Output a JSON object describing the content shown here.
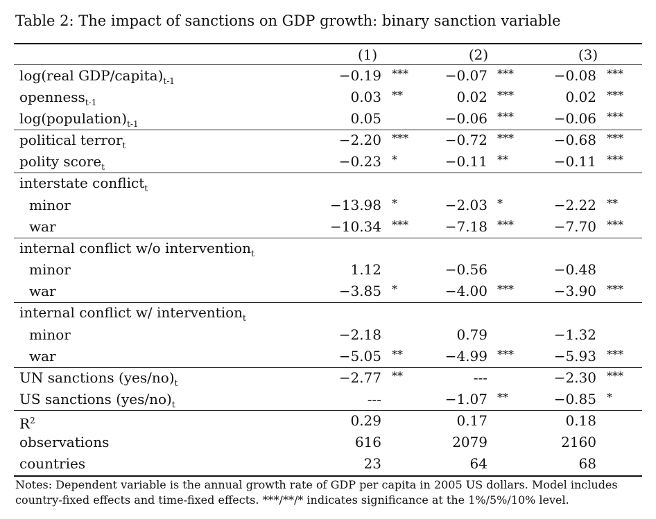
{
  "caption": "Table 2: The impact of sanctions on GDP growth: binary sanction variable",
  "columns": [
    "(1)",
    "(2)",
    "(3)"
  ],
  "rows": [
    {
      "label": "log(real GDP/capita)",
      "sub": "t-1",
      "sup": "",
      "indent": false,
      "cells": [
        [
          "−0.19",
          "***"
        ],
        [
          "−0.07",
          "***"
        ],
        [
          "−0.08",
          "***"
        ]
      ]
    },
    {
      "label": "openness",
      "sub": "t-1",
      "sup": "",
      "indent": false,
      "cells": [
        [
          "0.03",
          "**"
        ],
        [
          "0.02",
          "***"
        ],
        [
          "0.02",
          "***"
        ]
      ]
    },
    {
      "label": "log(population)",
      "sub": "t-1",
      "sup": "",
      "indent": false,
      "cells": [
        [
          "0.05",
          ""
        ],
        [
          "−0.06",
          "***"
        ],
        [
          "−0.06",
          "***"
        ]
      ]
    },
    {
      "label": "political terror",
      "sub": "t",
      "sup": "",
      "indent": false,
      "cells": [
        [
          "−2.20",
          "***"
        ],
        [
          "−0.72",
          "***"
        ],
        [
          "−0.68",
          "***"
        ]
      ]
    },
    {
      "label": "polity score",
      "sub": "t",
      "sup": "",
      "indent": false,
      "cells": [
        [
          "−0.23",
          "*"
        ],
        [
          "−0.11",
          "**"
        ],
        [
          "−0.11",
          "***"
        ]
      ]
    },
    {
      "label": "interstate conflict",
      "sub": "t",
      "sup": "",
      "indent": false,
      "cells": [
        [
          "",
          ""
        ],
        [
          "",
          ""
        ],
        [
          "",
          ""
        ]
      ]
    },
    {
      "label": "minor",
      "sub": "",
      "sup": "",
      "indent": true,
      "cells": [
        [
          "−13.98",
          "*"
        ],
        [
          "−2.03",
          "*"
        ],
        [
          "−2.22",
          "**"
        ]
      ]
    },
    {
      "label": "war",
      "sub": "",
      "sup": "",
      "indent": true,
      "cells": [
        [
          "−10.34",
          "***"
        ],
        [
          "−7.18",
          "***"
        ],
        [
          "−7.70",
          "***"
        ]
      ]
    },
    {
      "label": "internal conflict w/o intervention",
      "sub": "t",
      "sup": "",
      "indent": false,
      "cells": [
        [
          "",
          ""
        ],
        [
          "",
          ""
        ],
        [
          "",
          ""
        ]
      ]
    },
    {
      "label": "minor",
      "sub": "",
      "sup": "",
      "indent": true,
      "cells": [
        [
          "1.12",
          ""
        ],
        [
          "−0.56",
          ""
        ],
        [
          "−0.48",
          ""
        ]
      ]
    },
    {
      "label": "war",
      "sub": "",
      "sup": "",
      "indent": true,
      "cells": [
        [
          "−3.85",
          "*"
        ],
        [
          "−4.00",
          "***"
        ],
        [
          "−3.90",
          "***"
        ]
      ]
    },
    {
      "label": "internal conflict w/ intervention",
      "sub": "t",
      "sup": "",
      "indent": false,
      "cells": [
        [
          "",
          ""
        ],
        [
          "",
          ""
        ],
        [
          "",
          ""
        ]
      ]
    },
    {
      "label": "minor",
      "sub": "",
      "sup": "",
      "indent": true,
      "cells": [
        [
          "−2.18",
          ""
        ],
        [
          "0.79",
          ""
        ],
        [
          "−1.32",
          ""
        ]
      ]
    },
    {
      "label": "war",
      "sub": "",
      "sup": "",
      "indent": true,
      "cells": [
        [
          "−5.05",
          "**"
        ],
        [
          "−4.99",
          "***"
        ],
        [
          "−5.93",
          "***"
        ]
      ]
    },
    {
      "label": "UN sanctions (yes/no)",
      "sub": "t",
      "sup": "",
      "indent": false,
      "cells": [
        [
          "−2.77",
          "**"
        ],
        [
          "---",
          ""
        ],
        [
          "−2.30",
          "***"
        ]
      ]
    },
    {
      "label": "US sanctions (yes/no)",
      "sub": "t",
      "sup": "",
      "indent": false,
      "cells": [
        [
          "---",
          ""
        ],
        [
          "−1.07",
          "**"
        ],
        [
          "−0.85",
          "*"
        ]
      ]
    },
    {
      "label": "R",
      "sub": "",
      "sup": "2",
      "indent": false,
      "cells": [
        [
          "0.29",
          ""
        ],
        [
          "0.17",
          ""
        ],
        [
          "0.18",
          ""
        ]
      ]
    },
    {
      "label": "observations",
      "sub": "",
      "sup": "",
      "indent": false,
      "cells": [
        [
          "616",
          ""
        ],
        [
          "2079",
          ""
        ],
        [
          "2160",
          ""
        ]
      ]
    },
    {
      "label": "countries",
      "sub": "",
      "sup": "",
      "indent": false,
      "cells": [
        [
          "23",
          ""
        ],
        [
          "64",
          ""
        ],
        [
          "68",
          ""
        ]
      ]
    }
  ],
  "notes": "Notes: Dependent variable is the annual growth rate of GDP per capita in 2005 US dollars. Model includes country-fixed effects and time-fixed effects. ***/**/* indicates significance at the 1%/5%/10% level."
}
